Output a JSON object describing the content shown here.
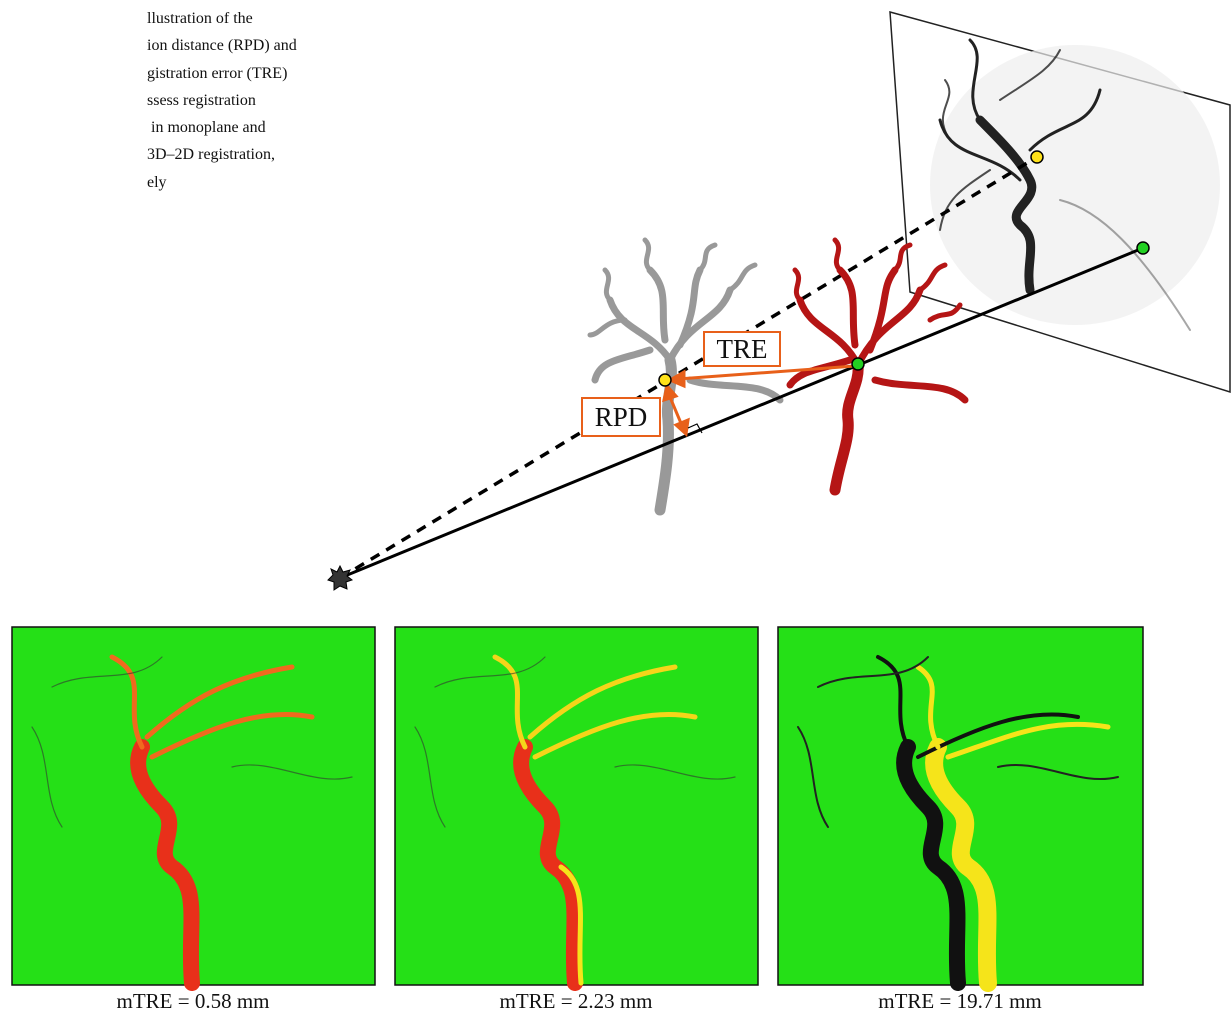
{
  "caption_lines": [
    "llustration of the",
    "ion distance (RPD) and",
    "gistration error (TRE)",
    "ssess registration",
    " in monoplane and",
    "3D–2D registration,",
    "ely"
  ],
  "labels": {
    "tre": "TRE",
    "rpd": "RPD"
  },
  "panels": [
    {
      "caption": "mTRE = 0.58 mm"
    },
    {
      "caption": "mTRE = 2.23 mm"
    },
    {
      "caption": "mTRE = 19.71 mm"
    }
  ]
}
